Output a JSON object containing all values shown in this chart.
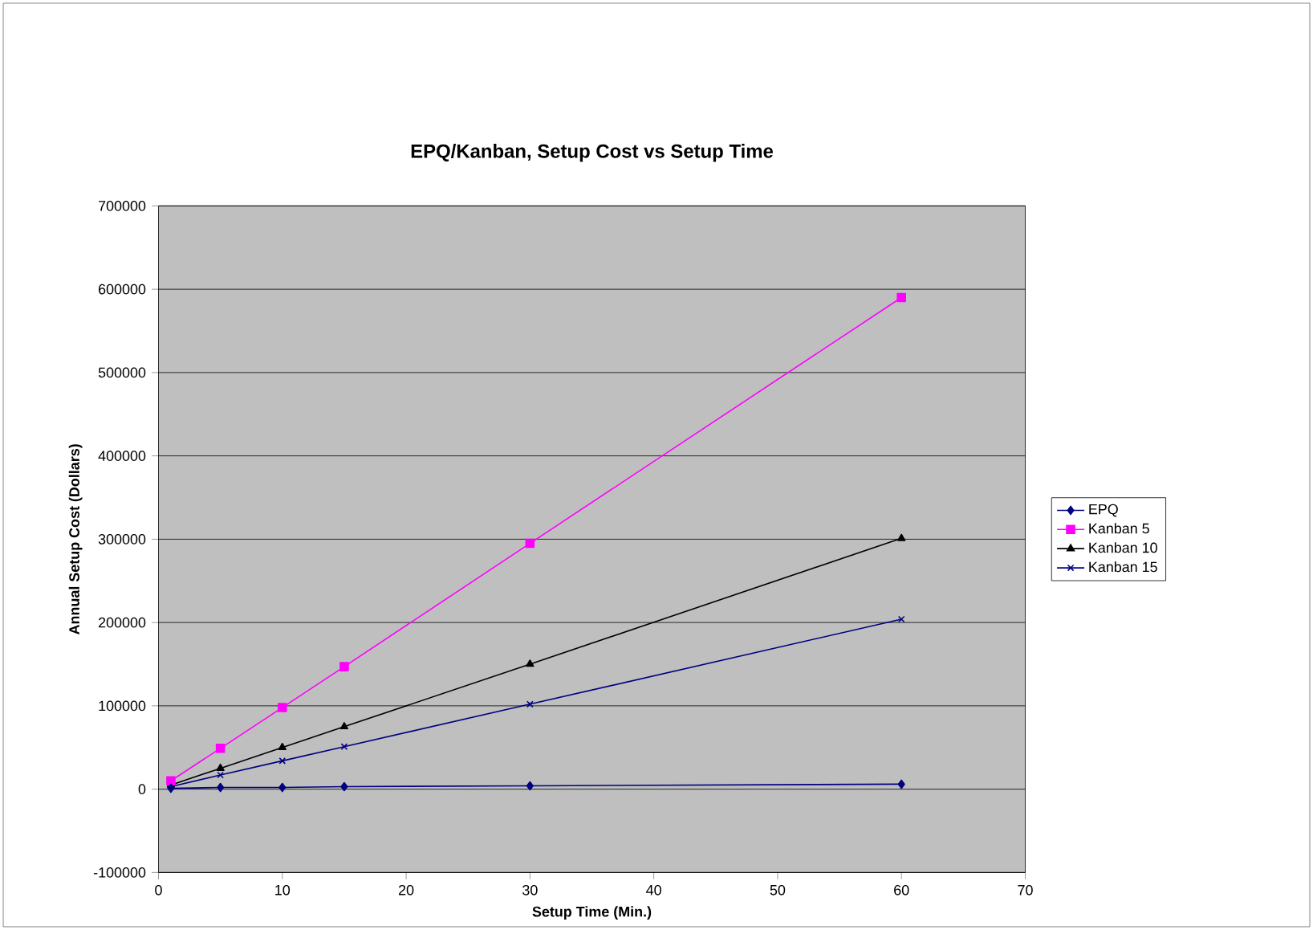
{
  "chart_data": {
    "type": "line",
    "title": "EPQ/Kanban, Setup Cost vs Setup Time",
    "xlabel": "Setup Time (Min.)",
    "ylabel": "Annual Setup Cost (Dollars)",
    "x": [
      1,
      5,
      10,
      15,
      30,
      60
    ],
    "series": [
      {
        "name": "EPQ",
        "color": "#000080",
        "marker": "diamond",
        "values": [
          1000,
          2000,
          2000,
          3000,
          4000,
          6000
        ]
      },
      {
        "name": "Kanban 5",
        "color": "#ff00ff",
        "marker": "square",
        "values": [
          10000,
          49000,
          98000,
          147000,
          295000,
          590000
        ]
      },
      {
        "name": "Kanban 10",
        "color": "#000000",
        "marker": "triangle",
        "values": [
          5000,
          25000,
          50000,
          75000,
          150000,
          301000
        ]
      },
      {
        "name": "Kanban 15",
        "color": "#000080",
        "marker": "cross",
        "values": [
          3000,
          17000,
          34000,
          51000,
          102000,
          204000
        ]
      }
    ],
    "xlim": [
      0,
      70
    ],
    "xticks": [
      0,
      10,
      20,
      30,
      40,
      50,
      60,
      70
    ],
    "ylim": [
      -100000,
      700000
    ],
    "yticks": [
      -100000,
      0,
      100000,
      200000,
      300000,
      400000,
      500000,
      600000,
      700000
    ],
    "grid": "y",
    "legend": "right",
    "line_style": "solid"
  }
}
